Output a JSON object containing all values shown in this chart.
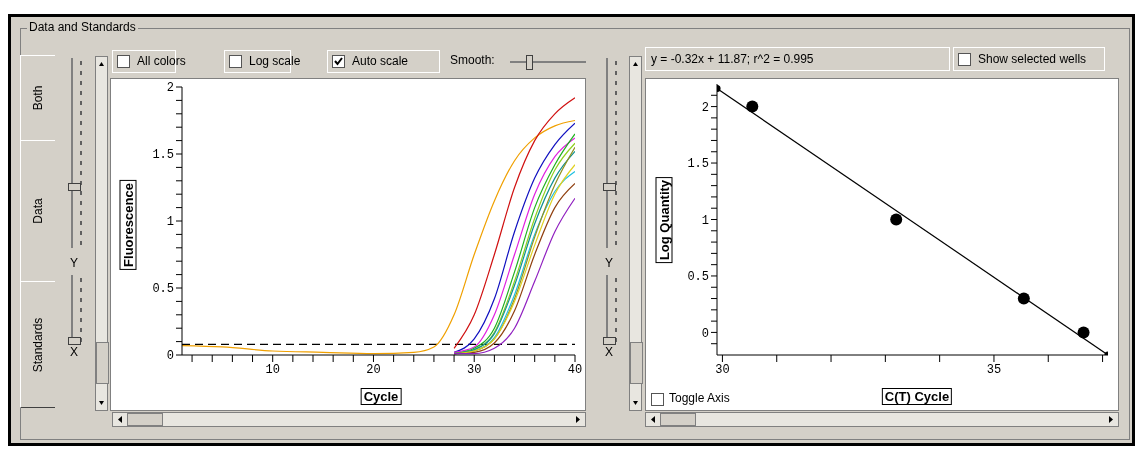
{
  "chart_data": [
    {
      "type": "line",
      "xlabel": "Cycle",
      "ylabel": "Fluorescence",
      "annotations": [
        "Data and Standards",
        "All colors",
        "Log scale",
        "Auto scale",
        "Smooth:",
        "Both",
        "Data",
        "Standards",
        "Y",
        "X"
      ],
      "x": [
        1,
        5,
        10,
        15,
        20,
        24,
        26,
        28,
        30,
        32,
        34,
        36,
        38,
        40
      ],
      "series": [
        {
          "color": "#f0a000",
          "values": [
            0.07,
            0.06,
            0.03,
            0.02,
            0.01,
            0.02,
            0.06,
            0.3,
            0.75,
            1.15,
            1.45,
            1.62,
            1.71,
            1.75
          ]
        },
        {
          "color": "#d01010",
          "values": [
            null,
            null,
            null,
            null,
            null,
            null,
            null,
            0.05,
            0.3,
            0.75,
            1.25,
            1.6,
            1.8,
            1.92
          ]
        },
        {
          "color": "#1010c0",
          "values": [
            null,
            null,
            null,
            null,
            null,
            null,
            null,
            0.02,
            0.12,
            0.42,
            0.92,
            1.32,
            1.57,
            1.73
          ]
        },
        {
          "color": "#e020e0",
          "values": [
            null,
            null,
            null,
            null,
            null,
            null,
            null,
            0.02,
            0.06,
            0.3,
            0.75,
            1.2,
            1.48,
            1.62
          ]
        },
        {
          "color": "#20b020",
          "values": [
            null,
            null,
            null,
            null,
            null,
            null,
            null,
            0.01,
            0.05,
            0.2,
            0.62,
            1.1,
            1.42,
            1.65
          ]
        },
        {
          "color": "#90d020",
          "values": [
            null,
            null,
            null,
            null,
            null,
            null,
            null,
            0.01,
            0.04,
            0.17,
            0.55,
            1.02,
            1.38,
            1.58
          ]
        },
        {
          "color": "#20c0e0",
          "values": [
            null,
            null,
            null,
            null,
            null,
            null,
            null,
            0.01,
            0.03,
            0.13,
            0.45,
            0.9,
            1.22,
            1.37
          ]
        },
        {
          "color": "#109090",
          "values": [
            null,
            null,
            null,
            null,
            null,
            null,
            null,
            0.01,
            0.04,
            0.16,
            0.52,
            0.98,
            1.32,
            1.52
          ]
        },
        {
          "color": "#909020",
          "values": [
            null,
            null,
            null,
            null,
            null,
            null,
            null,
            0.01,
            0.03,
            0.12,
            0.42,
            0.88,
            1.27,
            1.55
          ]
        },
        {
          "color": "#904010",
          "values": [
            null,
            null,
            null,
            null,
            null,
            null,
            null,
            0.01,
            0.02,
            0.09,
            0.33,
            0.75,
            1.1,
            1.28
          ]
        },
        {
          "color": "#e0d020",
          "values": [
            null,
            null,
            null,
            null,
            null,
            null,
            null,
            0.01,
            0.03,
            0.12,
            0.4,
            0.82,
            1.2,
            1.42
          ]
        },
        {
          "color": "#9020c0",
          "values": [
            null,
            null,
            null,
            null,
            null,
            null,
            null,
            0.01,
            0.01,
            0.05,
            0.2,
            0.55,
            0.92,
            1.17
          ]
        }
      ],
      "xlim": [
        1,
        40
      ],
      "xticks": [
        {
          "value": 2,
          "label": null
        },
        {
          "value": 4,
          "label": null
        },
        {
          "value": 6,
          "label": null
        },
        {
          "value": 8,
          "label": null
        },
        10,
        {
          "value": 12,
          "label": null
        },
        {
          "value": 14,
          "label": null
        },
        {
          "value": 16,
          "label": null
        },
        {
          "value": 18,
          "label": null
        },
        20,
        {
          "value": 22,
          "label": null
        },
        {
          "value": 24,
          "label": null
        },
        {
          "value": 26,
          "label": null
        },
        {
          "value": 28,
          "label": null
        },
        30,
        {
          "value": 32,
          "label": null
        },
        {
          "value": 34,
          "label": null
        },
        {
          "value": 36,
          "label": null
        },
        {
          "value": 38,
          "label": null
        },
        40
      ],
      "ylim": [
        0,
        2
      ],
      "yticks": [
        0,
        {
          "value": 0.1,
          "label": null
        },
        {
          "value": 0.2,
          "label": null
        },
        {
          "value": 0.3,
          "label": null
        },
        {
          "value": 0.4,
          "label": null
        },
        0.5,
        {
          "value": 0.6,
          "label": null
        },
        {
          "value": 0.7,
          "label": null
        },
        {
          "value": 0.8,
          "label": null
        },
        {
          "value": 0.9,
          "label": null
        },
        1,
        {
          "value": 1.1,
          "label": null
        },
        {
          "value": 1.2,
          "label": null
        },
        {
          "value": 1.3,
          "label": null
        },
        {
          "value": 1.4,
          "label": null
        },
        1.5,
        {
          "value": 1.6,
          "label": null
        },
        {
          "value": 1.7,
          "label": null
        },
        {
          "value": 1.8,
          "label": null
        },
        {
          "value": 1.9,
          "label": null
        },
        2
      ],
      "ref_lines": [
        {
          "axis": "y",
          "value": 0.08,
          "color": "#000000",
          "line_style": "dashed"
        }
      ],
      "marker": "none",
      "line_style": "solid"
    },
    {
      "type": "scatter",
      "xlabel": "C(T) Cycle",
      "ylabel": "Log Quantity",
      "annotations": [
        "y = -0.32x + 11.87;  r^2 = 0.995",
        "Show selected wells",
        "Toggle Axis",
        "Y",
        "X"
      ],
      "series": [
        {
          "color": "#000000",
          "x": [
            30.55,
            33.2,
            35.55,
            36.65
          ],
          "values": [
            2,
            1,
            0.3,
            0
          ]
        },
        {
          "type": "line",
          "color": "#000000",
          "x": [
            29.9,
            37.1
          ],
          "values": [
            2.16,
            -0.2
          ]
        }
      ],
      "xlim": [
        29.9,
        37.1
      ],
      "xticks": [
        30,
        {
          "value": 31,
          "label": null
        },
        {
          "value": 32,
          "label": null
        },
        {
          "value": 33,
          "label": null
        },
        {
          "value": 34,
          "label": null
        },
        35,
        {
          "value": 36,
          "label": null
        },
        {
          "value": 37,
          "label": null
        }
      ],
      "ylim": [
        -0.2,
        2.2
      ],
      "yticks": [
        {
          "value": -0.1,
          "label": null
        },
        0,
        {
          "value": 0.1,
          "label": null
        },
        {
          "value": 0.2,
          "label": null
        },
        {
          "value": 0.3,
          "label": null
        },
        {
          "value": 0.4,
          "label": null
        },
        0.5,
        {
          "value": 0.6,
          "label": null
        },
        {
          "value": 0.7,
          "label": null
        },
        {
          "value": 0.8,
          "label": null
        },
        {
          "value": 0.9,
          "label": null
        },
        1,
        {
          "value": 1.1,
          "label": null
        },
        {
          "value": 1.2,
          "label": null
        },
        {
          "value": 1.3,
          "label": null
        },
        {
          "value": 1.4,
          "label": null
        },
        1.5,
        {
          "value": 1.6,
          "label": null
        },
        {
          "value": 1.7,
          "label": null
        },
        {
          "value": 1.8,
          "label": null
        },
        {
          "value": 1.9,
          "label": null
        },
        2,
        {
          "value": 2.1,
          "label": null
        }
      ],
      "marker": "circle",
      "line_style": "solid"
    }
  ]
}
